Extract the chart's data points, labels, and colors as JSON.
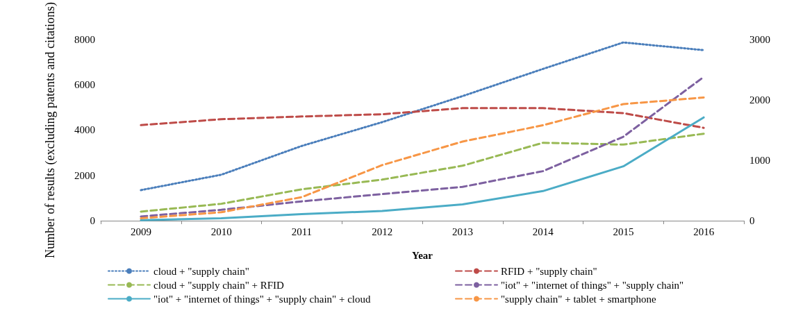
{
  "chart_data": {
    "type": "line",
    "xlabel": "Year",
    "ylabel": "Number of results (excluding patents and citations)",
    "categories": [
      "2009",
      "2010",
      "2011",
      "2012",
      "2013",
      "2014",
      "2015",
      "2016"
    ],
    "ylim": [
      0,
      8000
    ],
    "yticks": [
      0,
      2000,
      4000,
      6000,
      8000
    ],
    "y2lim": [
      0,
      3000
    ],
    "y2ticks": [
      0,
      1000,
      2000,
      3000
    ],
    "grid": false,
    "legend": "bottom",
    "marker": "none",
    "series": [
      {
        "name": "cloud + \"supply chain\"",
        "color": "#4a7ebb",
        "line_style": "dotted",
        "values": [
          1350,
          2030,
          3300,
          4350,
          5500,
          6700,
          7870,
          7530
        ]
      },
      {
        "name": "RFID + \"supply chain\"",
        "color": "#be4b48",
        "line_style": "dashed",
        "values": [
          4220,
          4480,
          4600,
          4700,
          4970,
          4970,
          4750,
          4100
        ]
      },
      {
        "name": "cloud + \"supply chain\" + RFID",
        "color": "#98b954",
        "line_style": "dashed",
        "axis": "y2",
        "values": [
          150,
          280,
          520,
          680,
          910,
          1290,
          1260,
          1440
        ]
      },
      {
        "name": "\"iot\" + \"internet of things\" + \"supply chain\"",
        "color": "#7d60a0",
        "line_style": "dashed",
        "axis": "y2",
        "values": [
          70,
          180,
          320,
          440,
          560,
          820,
          1390,
          2380
        ]
      },
      {
        "name": "\"iot\" + \"internet of things\" + \"supply chain\" + cloud",
        "color": "#4bacc6",
        "line_style": "solid",
        "axis": "y2",
        "values": [
          10,
          40,
          110,
          160,
          270,
          490,
          900,
          1710
        ]
      },
      {
        "name": "\"supply chain\" + tablet + smartphone",
        "color": "#f79646",
        "line_style": "dashed",
        "axis": "y2",
        "values": [
          40,
          140,
          390,
          920,
          1310,
          1580,
          1930,
          2040
        ]
      }
    ]
  }
}
